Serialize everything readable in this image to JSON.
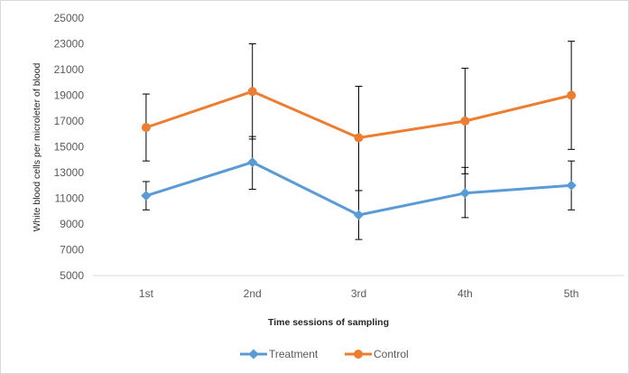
{
  "chart_data": {
    "type": "line",
    "categories": [
      "1st",
      "2nd",
      "3rd",
      "4th",
      "5th"
    ],
    "series": [
      {
        "name": "Treatment",
        "color": "#5B9BD5",
        "values": [
          11200,
          13800,
          9700,
          11400,
          12000
        ],
        "error_low": [
          10100,
          11700,
          7800,
          9500,
          10100
        ],
        "error_high": [
          12300,
          15800,
          11600,
          13400,
          13900
        ]
      },
      {
        "name": "Control",
        "color": "#ED7D31",
        "values": [
          16500,
          19300,
          15700,
          17000,
          19000
        ],
        "error_low": [
          13900,
          15600,
          11600,
          12900,
          14800
        ],
        "error_high": [
          19100,
          23000,
          19700,
          21100,
          23200
        ]
      }
    ],
    "ylim": [
      5000,
      25000
    ],
    "yticks": [
      "25000",
      "23000",
      "21000",
      "19000",
      "17000",
      "15000",
      "13000",
      "11000",
      "9000",
      "7000",
      "5000"
    ],
    "xlabel": "Time sessions of sampling",
    "ylabel": "White blood cells per microleter of blood",
    "legend_position": "bottom",
    "grid": false
  }
}
